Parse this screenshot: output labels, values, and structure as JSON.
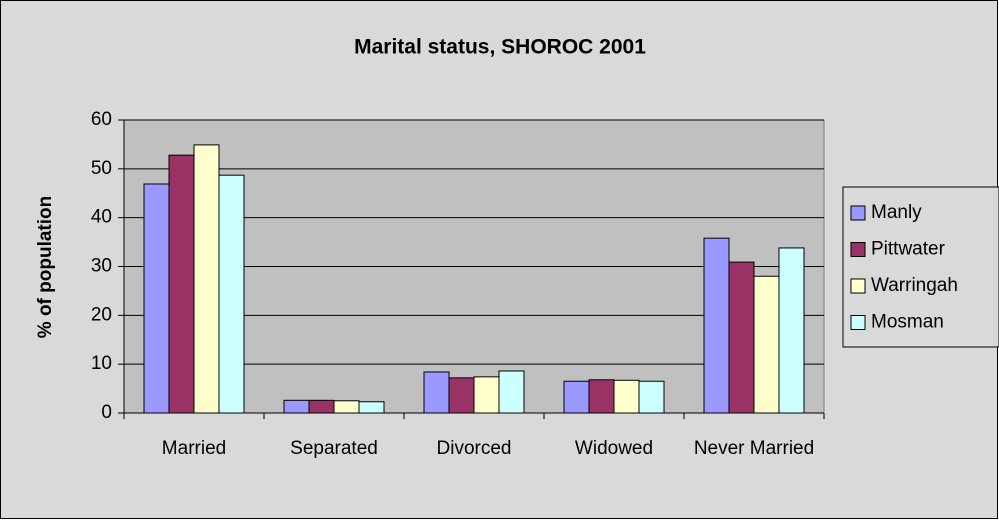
{
  "chart_data": {
    "type": "bar",
    "title": "Marital status, SHOROC 2001",
    "ylabel": "% of population",
    "categories": [
      "Married",
      "Separated",
      "Divorced",
      "Widowed",
      "Never Married"
    ],
    "series": [
      {
        "name": "Manly",
        "color": "#9999ff",
        "values": [
          46.9,
          2.6,
          8.4,
          6.5,
          35.8
        ]
      },
      {
        "name": "Pittwater",
        "color": "#993366",
        "values": [
          52.8,
          2.6,
          7.2,
          6.8,
          30.9
        ]
      },
      {
        "name": "Warringah",
        "color": "#ffffcc",
        "values": [
          54.9,
          2.5,
          7.4,
          6.7,
          28.0
        ]
      },
      {
        "name": "Mosman",
        "color": "#ccffff",
        "values": [
          48.7,
          2.3,
          8.6,
          6.5,
          33.8
        ]
      }
    ],
    "ylim": [
      0,
      60
    ],
    "yticks": [
      0,
      10,
      20,
      30,
      40,
      50,
      60
    ],
    "grid": true,
    "legend": "right"
  }
}
